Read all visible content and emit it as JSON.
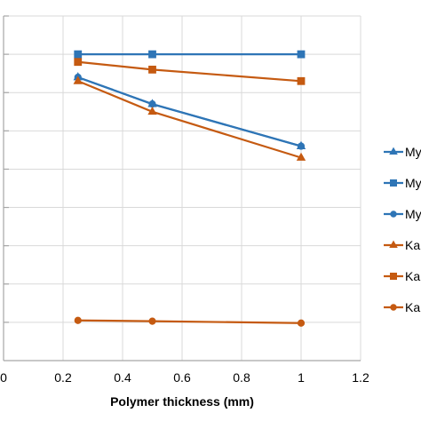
{
  "chart_data": {
    "type": "line",
    "xlabel": "Polymer thickness (mm)",
    "ylabel": "",
    "xlim": [
      0,
      1.2
    ],
    "ylim": [
      0,
      9
    ],
    "x_ticks": [
      "0",
      "0.2",
      "0.4",
      "0.6",
      "0.8",
      "1",
      "1.2"
    ],
    "grid": true,
    "legend_position": "right",
    "series": [
      {
        "name": "My",
        "color": "#2e75b6",
        "marker": "triangle",
        "x": [
          0.25,
          0.5,
          1
        ],
        "y": [
          7.4,
          6.7,
          5.6
        ]
      },
      {
        "name": "My",
        "color": "#2e75b6",
        "marker": "square",
        "x": [
          0.25,
          0.5,
          1
        ],
        "y": [
          8,
          8,
          8
        ]
      },
      {
        "name": "My",
        "color": "#2e75b6",
        "marker": "circle",
        "x": [
          0.25,
          0.5,
          1
        ],
        "y": [
          7.4,
          6.7,
          5.6
        ]
      },
      {
        "name": "Kap",
        "color": "#c55a11",
        "marker": "triangle",
        "x": [
          0.25,
          0.5,
          1
        ],
        "y": [
          7.3,
          6.5,
          5.3
        ]
      },
      {
        "name": "Kap",
        "color": "#c55a11",
        "marker": "square",
        "x": [
          0.25,
          0.5,
          1
        ],
        "y": [
          7.8,
          7.6,
          7.3
        ]
      },
      {
        "name": "Kap",
        "color": "#c55a11",
        "marker": "circle",
        "x": [
          0.25,
          0.5,
          1
        ],
        "y": [
          1.05,
          1.03,
          0.98
        ]
      }
    ]
  }
}
